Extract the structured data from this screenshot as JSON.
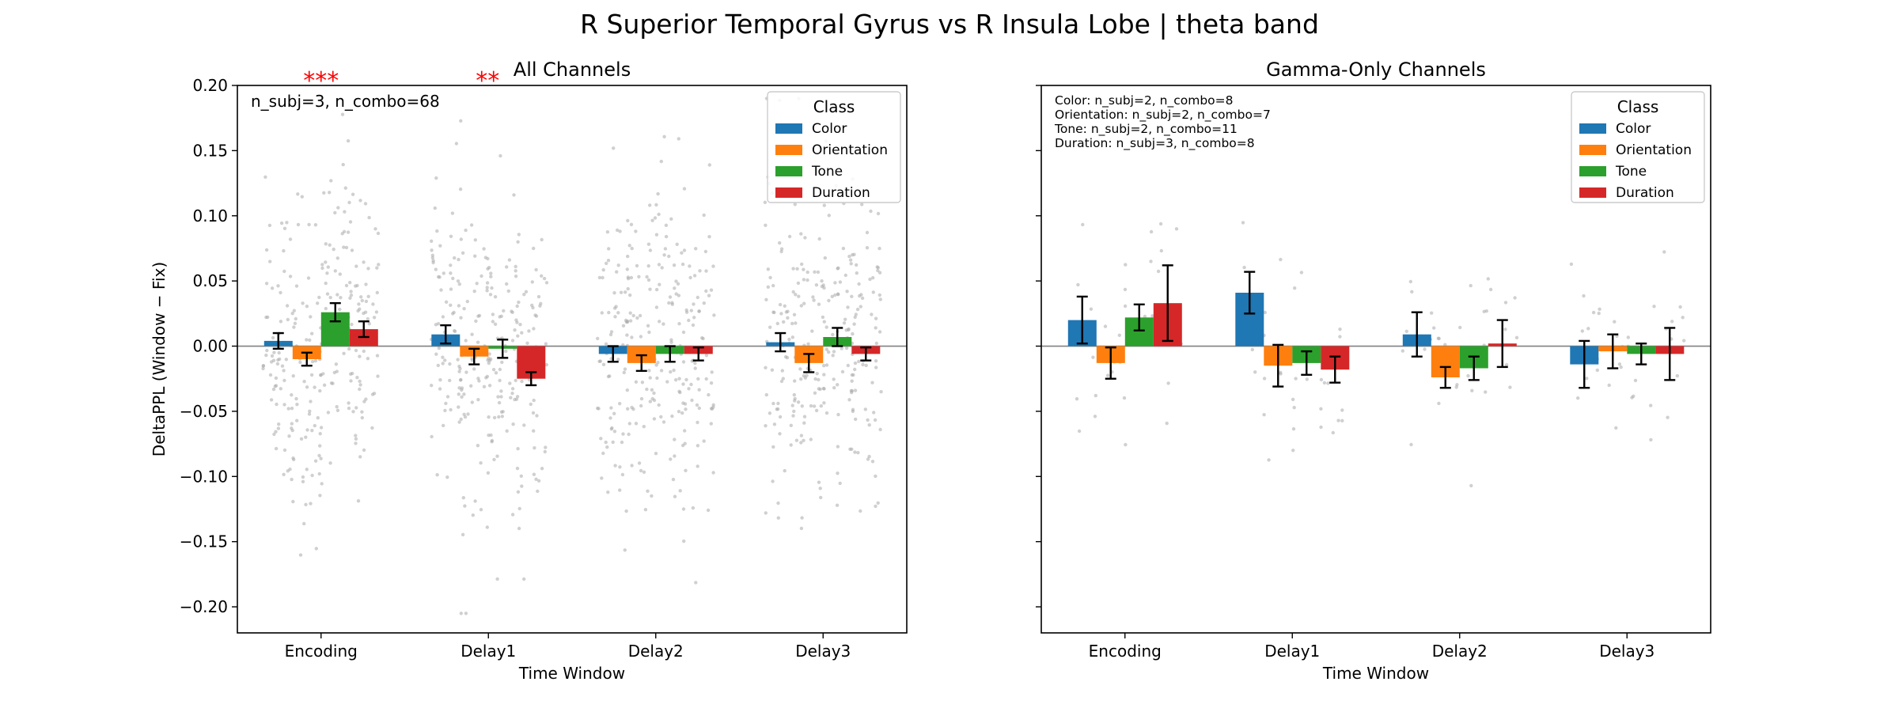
{
  "figure": {
    "suptitle": "R Superior Temporal Gyrus vs R Insula Lobe  |  theta band"
  },
  "legend": {
    "title": "Class",
    "placement": "upper right"
  },
  "colors": {
    "Color": "#1f77b4",
    "Orientation": "#ff7f0e",
    "Tone": "#2ca02c",
    "Duration": "#d62728",
    "significance": "#ff0000",
    "points": "#a9a9a9"
  },
  "chart_data": [
    {
      "type": "bar",
      "title": "All Channels",
      "xlabel": "Time Window",
      "ylabel": "DeltaPPL (Window − Fix)",
      "ylim": [
        -0.22,
        0.2
      ],
      "yticks": [
        -0.2,
        -0.15,
        -0.1,
        -0.05,
        0.0,
        0.05,
        0.1,
        0.15,
        0.2
      ],
      "ytick_labels": [
        "−0.20",
        "−0.15",
        "−0.10",
        "−0.05",
        "0.00",
        "0.05",
        "0.10",
        "0.15",
        "0.20"
      ],
      "categories": [
        "Encoding",
        "Delay1",
        "Delay2",
        "Delay3"
      ],
      "annotation": "n_subj=3, n_combo=68",
      "significance": [
        {
          "category": "Encoding",
          "label": "***"
        },
        {
          "category": "Delay1",
          "label": "**"
        }
      ],
      "series": [
        {
          "name": "Color",
          "values": [
            0.004,
            0.009,
            -0.006,
            0.003
          ],
          "errors": [
            0.006,
            0.007,
            0.006,
            0.007
          ]
        },
        {
          "name": "Orientation",
          "values": [
            -0.01,
            -0.008,
            -0.013,
            -0.013
          ],
          "errors": [
            0.005,
            0.006,
            0.006,
            0.007
          ]
        },
        {
          "name": "Tone",
          "values": [
            0.026,
            -0.002,
            -0.006,
            0.007
          ],
          "errors": [
            0.007,
            0.007,
            0.006,
            0.007
          ]
        },
        {
          "name": "Duration",
          "values": [
            0.013,
            -0.025,
            -0.006,
            -0.006
          ],
          "errors": [
            0.006,
            0.005,
            0.005,
            0.005
          ]
        }
      ],
      "grid": false
    },
    {
      "type": "bar",
      "title": "Gamma-Only Channels",
      "xlabel": "Time Window",
      "ylabel": "",
      "ylim": [
        -0.22,
        0.2
      ],
      "categories": [
        "Encoding",
        "Delay1",
        "Delay2",
        "Delay3"
      ],
      "annotation_lines": [
        "Color: n_subj=2, n_combo=8",
        "Orientation: n_subj=2, n_combo=7",
        "Tone: n_subj=2, n_combo=11",
        "Duration: n_subj=3, n_combo=8"
      ],
      "series": [
        {
          "name": "Color",
          "values": [
            0.02,
            0.041,
            0.009,
            -0.014
          ],
          "errors": [
            0.018,
            0.016,
            0.017,
            0.018
          ]
        },
        {
          "name": "Orientation",
          "values": [
            -0.013,
            -0.015,
            -0.024,
            -0.004
          ],
          "errors": [
            0.012,
            0.016,
            0.008,
            0.013
          ]
        },
        {
          "name": "Tone",
          "values": [
            0.022,
            -0.013,
            -0.017,
            -0.006
          ],
          "errors": [
            0.01,
            0.009,
            0.009,
            0.008
          ]
        },
        {
          "name": "Duration",
          "values": [
            0.033,
            -0.018,
            0.002,
            -0.006
          ],
          "errors": [
            0.029,
            0.01,
            0.018,
            0.02
          ]
        }
      ],
      "grid": false
    }
  ]
}
